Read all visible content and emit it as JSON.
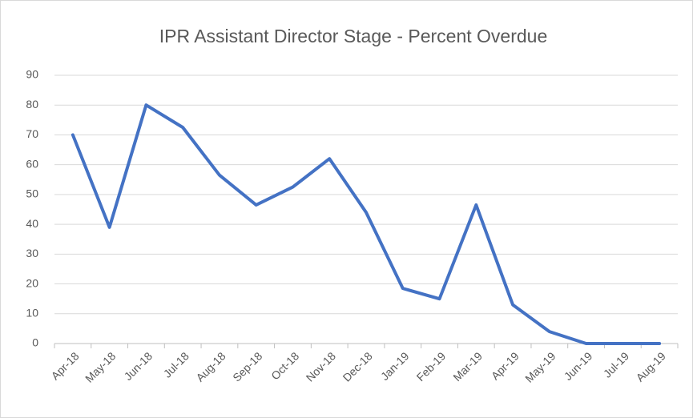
{
  "chart_data": {
    "type": "line",
    "title": "IPR Assistant Director Stage - Percent Overdue",
    "categories": [
      "Apr-18",
      "May-18",
      "Jun-18",
      "Jul-18",
      "Aug-18",
      "Sep-18",
      "Oct-18",
      "Nov-18",
      "Dec-18",
      "Jan-19",
      "Feb-19",
      "Mar-19",
      "Apr-19",
      "May-19",
      "Jun-19",
      "Jul-19",
      "Aug-19"
    ],
    "series": [
      {
        "name": "Percent Overdue",
        "color": "#4472c4",
        "values": [
          70,
          39,
          80,
          72.5,
          56.5,
          46.5,
          52.5,
          62,
          44,
          18.5,
          15,
          46.5,
          13,
          4,
          0,
          0,
          0
        ]
      }
    ],
    "ylim": [
      0,
      90
    ],
    "yticks": [
      0,
      10,
      20,
      30,
      40,
      50,
      60,
      70,
      80,
      90
    ],
    "grid": true
  }
}
